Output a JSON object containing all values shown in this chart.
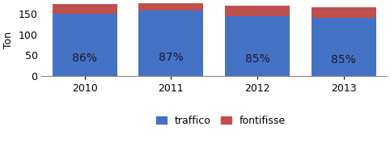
{
  "years": [
    "2010",
    "2011",
    "2012",
    "2013"
  ],
  "traffico": [
    150,
    157,
    144,
    140
  ],
  "fontifisse": [
    24,
    23,
    26,
    25
  ],
  "traffico_pct": [
    "86%",
    "87%",
    "85%",
    "85%"
  ],
  "color_traffico": "#4472C4",
  "color_fontifisse": "#C0504D",
  "ylabel": "Ton",
  "ylim": [
    0,
    175
  ],
  "yticks": [
    0,
    50,
    100,
    150
  ],
  "bar_width": 0.75,
  "legend_traffico": "traffico",
  "legend_fontifisse": "fontifisse",
  "pct_fontsize": 10,
  "pct_color": "#1a1a2e",
  "background_color": "#FFFFFF"
}
